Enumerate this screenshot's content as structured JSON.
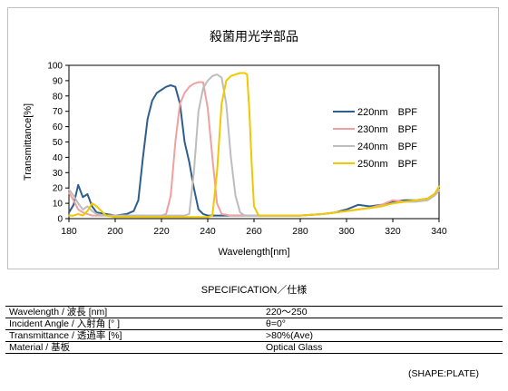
{
  "chart_data": {
    "type": "line",
    "title": "殺菌用光学部品",
    "xlabel": "Wavelength[nm]",
    "ylabel": "Transmittance[%]",
    "xlim": [
      180,
      340
    ],
    "ylim": [
      0,
      100
    ],
    "xticks": [
      "180",
      "200",
      "220",
      "240",
      "260",
      "280",
      "300",
      "320",
      "340"
    ],
    "yticks": [
      "0",
      "10",
      "20",
      "30",
      "40",
      "50",
      "60",
      "70",
      "80",
      "90",
      "100"
    ],
    "grid": false,
    "legend_position": "right",
    "series": [
      {
        "name": "220nm　BPF",
        "color": "#2e5e8e",
        "points": [
          [
            180,
            4
          ],
          [
            182,
            9
          ],
          [
            184,
            22
          ],
          [
            186,
            14
          ],
          [
            188,
            16
          ],
          [
            190,
            8
          ],
          [
            192,
            4
          ],
          [
            196,
            3
          ],
          [
            200,
            2
          ],
          [
            205,
            3
          ],
          [
            208,
            5
          ],
          [
            210,
            12
          ],
          [
            212,
            40
          ],
          [
            214,
            65
          ],
          [
            216,
            77
          ],
          [
            218,
            82
          ],
          [
            220,
            84
          ],
          [
            222,
            86
          ],
          [
            224,
            87
          ],
          [
            226,
            86
          ],
          [
            228,
            75
          ],
          [
            230,
            50
          ],
          [
            232,
            37
          ],
          [
            234,
            20
          ],
          [
            236,
            6
          ],
          [
            238,
            3
          ],
          [
            240,
            2
          ],
          [
            250,
            2
          ],
          [
            260,
            2
          ],
          [
            270,
            2
          ],
          [
            280,
            2
          ],
          [
            290,
            3
          ],
          [
            295,
            4
          ],
          [
            300,
            6
          ],
          [
            305,
            9
          ],
          [
            310,
            8
          ],
          [
            315,
            9
          ],
          [
            320,
            11
          ],
          [
            325,
            12
          ],
          [
            330,
            12
          ],
          [
            335,
            13
          ],
          [
            338,
            16
          ],
          [
            340,
            20
          ]
        ]
      },
      {
        "name": "230nm　BPF",
        "color": "#f0a0a0",
        "points": [
          [
            180,
            17
          ],
          [
            182,
            12
          ],
          [
            184,
            6
          ],
          [
            186,
            4
          ],
          [
            188,
            3
          ],
          [
            190,
            2
          ],
          [
            195,
            2
          ],
          [
            200,
            2
          ],
          [
            210,
            2
          ],
          [
            220,
            2
          ],
          [
            222,
            3
          ],
          [
            224,
            15
          ],
          [
            226,
            50
          ],
          [
            228,
            75
          ],
          [
            230,
            82
          ],
          [
            232,
            86
          ],
          [
            234,
            88
          ],
          [
            236,
            89
          ],
          [
            238,
            89
          ],
          [
            240,
            72
          ],
          [
            242,
            40
          ],
          [
            244,
            10
          ],
          [
            246,
            3
          ],
          [
            250,
            2
          ],
          [
            260,
            2
          ],
          [
            270,
            2
          ],
          [
            280,
            2
          ],
          [
            290,
            3
          ],
          [
            300,
            5
          ],
          [
            310,
            7
          ],
          [
            315,
            9
          ],
          [
            320,
            12
          ],
          [
            325,
            11
          ],
          [
            330,
            12
          ],
          [
            335,
            12
          ],
          [
            338,
            15
          ],
          [
            340,
            18
          ]
        ]
      },
      {
        "name": "240nm　BPF",
        "color": "#bdbdbd",
        "points": [
          [
            180,
            19
          ],
          [
            182,
            15
          ],
          [
            184,
            10
          ],
          [
            186,
            6
          ],
          [
            188,
            8
          ],
          [
            190,
            5
          ],
          [
            192,
            3
          ],
          [
            195,
            2
          ],
          [
            200,
            2
          ],
          [
            210,
            2
          ],
          [
            220,
            2
          ],
          [
            230,
            2
          ],
          [
            232,
            3
          ],
          [
            234,
            30
          ],
          [
            236,
            70
          ],
          [
            238,
            85
          ],
          [
            240,
            90
          ],
          [
            242,
            93
          ],
          [
            244,
            94
          ],
          [
            246,
            92
          ],
          [
            248,
            75
          ],
          [
            250,
            40
          ],
          [
            252,
            15
          ],
          [
            254,
            4
          ],
          [
            256,
            2
          ],
          [
            260,
            2
          ],
          [
            270,
            2
          ],
          [
            280,
            2
          ],
          [
            290,
            3
          ],
          [
            300,
            5
          ],
          [
            305,
            6
          ],
          [
            310,
            7
          ],
          [
            315,
            8
          ],
          [
            320,
            10
          ],
          [
            325,
            11
          ],
          [
            330,
            11
          ],
          [
            335,
            12
          ],
          [
            338,
            15
          ],
          [
            340,
            19
          ]
        ]
      },
      {
        "name": "250nm　BPF",
        "color": "#f0c800",
        "points": [
          [
            180,
            2
          ],
          [
            182,
            2
          ],
          [
            184,
            3
          ],
          [
            186,
            2
          ],
          [
            188,
            5
          ],
          [
            190,
            10
          ],
          [
            192,
            8
          ],
          [
            194,
            5
          ],
          [
            196,
            2
          ],
          [
            200,
            1
          ],
          [
            210,
            1
          ],
          [
            220,
            1
          ],
          [
            230,
            1
          ],
          [
            240,
            1
          ],
          [
            242,
            2
          ],
          [
            244,
            30
          ],
          [
            246,
            75
          ],
          [
            248,
            90
          ],
          [
            250,
            93
          ],
          [
            252,
            94
          ],
          [
            254,
            95
          ],
          [
            256,
            95
          ],
          [
            257,
            94
          ],
          [
            258,
            70
          ],
          [
            259,
            35
          ],
          [
            260,
            8
          ],
          [
            262,
            2
          ],
          [
            270,
            2
          ],
          [
            280,
            2
          ],
          [
            290,
            3
          ],
          [
            300,
            5
          ],
          [
            305,
            6
          ],
          [
            310,
            7
          ],
          [
            315,
            8
          ],
          [
            320,
            10
          ],
          [
            325,
            11
          ],
          [
            330,
            12
          ],
          [
            335,
            13
          ],
          [
            338,
            16
          ],
          [
            340,
            21
          ]
        ]
      }
    ]
  },
  "spec": {
    "heading": "SPECIFICATION／仕様",
    "rows": [
      {
        "label": "Wavelength / 波長 [nm]",
        "value": "220～250"
      },
      {
        "label": "Incident Angle  / 入射角 [°  ]",
        "value": "θ=0°"
      },
      {
        "label": "Transmittance / 透過率 [%]",
        "value": ">80%(Ave)"
      },
      {
        "label": "Material  /  基板",
        "value": "Optical Glass"
      }
    ]
  },
  "shape_note": "(SHAPE:PLATE)"
}
